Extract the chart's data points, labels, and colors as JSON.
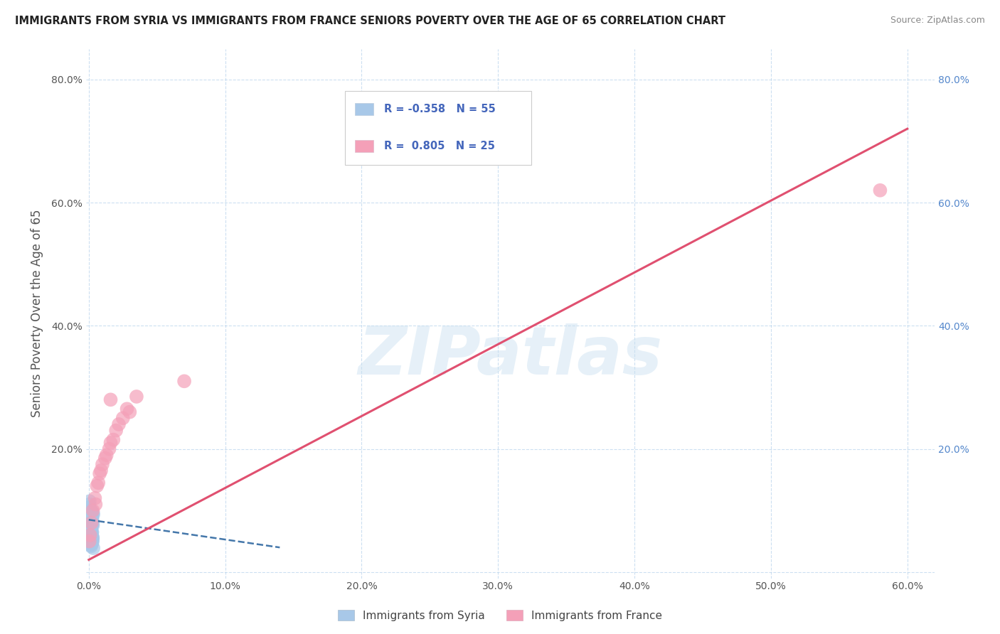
{
  "title": "IMMIGRANTS FROM SYRIA VS IMMIGRANTS FROM FRANCE SENIORS POVERTY OVER THE AGE OF 65 CORRELATION CHART",
  "source": "Source: ZipAtlas.com",
  "ylabel": "Seniors Poverty Over the Age of 65",
  "xlim": [
    -0.002,
    0.62
  ],
  "ylim": [
    -0.01,
    0.85
  ],
  "xticks": [
    0.0,
    0.1,
    0.2,
    0.3,
    0.4,
    0.5,
    0.6
  ],
  "xticklabels": [
    "0.0%",
    "10.0%",
    "20.0%",
    "30.0%",
    "40.0%",
    "50.0%",
    "60.0%"
  ],
  "yticks": [
    0.0,
    0.2,
    0.4,
    0.6,
    0.8
  ],
  "yticklabels": [
    "",
    "20.0%",
    "40.0%",
    "60.0%",
    "80.0%"
  ],
  "right_yticklabels": [
    "",
    "20.0%",
    "40.0%",
    "60.0%",
    "80.0%"
  ],
  "syria_R": -0.358,
  "syria_N": 55,
  "france_R": 0.805,
  "france_N": 25,
  "syria_color": "#a8c8e8",
  "syria_line_color": "#4477aa",
  "france_color": "#f4a0b8",
  "france_line_color": "#e05070",
  "watermark": "ZIPatlas",
  "legend_label_syria": "Immigrants from Syria",
  "legend_label_france": "Immigrants from France",
  "syria_x": [
    0.0005,
    0.0008,
    0.001,
    0.0012,
    0.0015,
    0.0018,
    0.002,
    0.0022,
    0.0025,
    0.0028,
    0.0005,
    0.0008,
    0.001,
    0.0013,
    0.0016,
    0.0019,
    0.0021,
    0.0024,
    0.0027,
    0.003,
    0.0006,
    0.0009,
    0.0011,
    0.0014,
    0.0017,
    0.002,
    0.0023,
    0.0026,
    0.0029,
    0.0032,
    0.0004,
    0.0007,
    0.001,
    0.0013,
    0.0016,
    0.0019,
    0.0022,
    0.0025,
    0.0028,
    0.0031,
    0.0005,
    0.0008,
    0.0011,
    0.0014,
    0.0018,
    0.0021,
    0.0024,
    0.0027,
    0.0006,
    0.0009,
    0.0012,
    0.0015,
    0.0017,
    0.0023,
    0.0033
  ],
  "syria_y": [
    0.09,
    0.08,
    0.095,
    0.085,
    0.07,
    0.1,
    0.075,
    0.088,
    0.065,
    0.082,
    0.11,
    0.072,
    0.068,
    0.078,
    0.062,
    0.092,
    0.058,
    0.086,
    0.055,
    0.076,
    0.098,
    0.066,
    0.073,
    0.083,
    0.06,
    0.087,
    0.064,
    0.079,
    0.056,
    0.093,
    0.105,
    0.069,
    0.057,
    0.084,
    0.071,
    0.063,
    0.089,
    0.077,
    0.052,
    0.096,
    0.061,
    0.074,
    0.081,
    0.053,
    0.067,
    0.091,
    0.059,
    0.049,
    0.115,
    0.047,
    0.044,
    0.05,
    0.042,
    0.046,
    0.039
  ],
  "france_x": [
    0.0005,
    0.001,
    0.002,
    0.003,
    0.0045,
    0.006,
    0.008,
    0.01,
    0.013,
    0.015,
    0.018,
    0.02,
    0.025,
    0.03,
    0.005,
    0.007,
    0.009,
    0.012,
    0.016,
    0.022,
    0.028,
    0.035,
    0.016,
    0.58,
    0.07
  ],
  "france_y": [
    0.05,
    0.06,
    0.08,
    0.1,
    0.12,
    0.14,
    0.16,
    0.175,
    0.19,
    0.2,
    0.215,
    0.23,
    0.25,
    0.26,
    0.11,
    0.145,
    0.165,
    0.185,
    0.21,
    0.24,
    0.265,
    0.285,
    0.28,
    0.62,
    0.31
  ],
  "france_trendline_x": [
    0.0,
    0.6
  ],
  "france_trendline_y": [
    0.02,
    0.72
  ],
  "syria_trendline_x": [
    0.0,
    0.14
  ],
  "syria_trendline_y": [
    0.085,
    0.04
  ]
}
